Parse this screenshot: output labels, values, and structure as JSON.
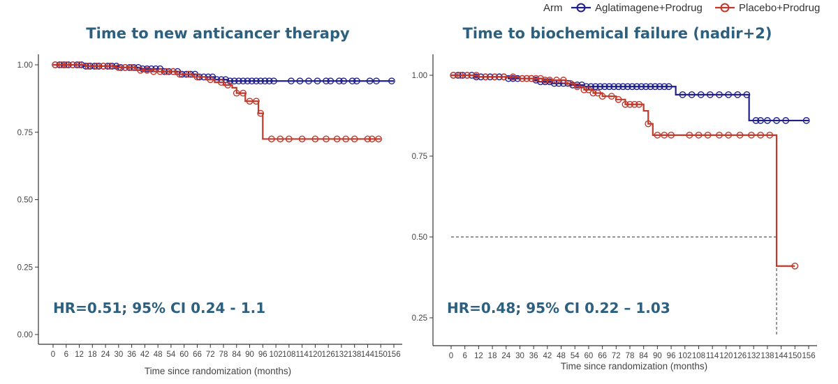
{
  "legend": {
    "title": "Arm",
    "items": [
      {
        "label": "Aglatimagene+Prodrug",
        "color": "#1f1f8c"
      },
      {
        "label": "Placebo+Prodrug",
        "color": "#c0392b"
      }
    ]
  },
  "chart_data": [
    {
      "type": "line",
      "step": true,
      "title": "Time to new anticancer therapy",
      "xlabel": "Time since randomization (months)",
      "ylabel": "",
      "xlim": [
        0,
        156
      ],
      "ylim": [
        0,
        1.0
      ],
      "x_ticks": [
        0,
        6,
        12,
        18,
        24,
        30,
        36,
        42,
        48,
        54,
        60,
        66,
        72,
        78,
        84,
        90,
        96,
        102,
        108,
        114,
        120,
        126,
        132,
        138,
        144,
        150,
        156
      ],
      "y_ticks": [
        0.0,
        0.25,
        0.5,
        0.75,
        1.0
      ],
      "y_tick_labels": [
        "0.00",
        "0.25",
        "0.50",
        "0.75",
        "1.00"
      ],
      "grid": false,
      "annotation": "HR=0.51; 95% CI 0.24 - 1.1",
      "series": [
        {
          "name": "Aglatimagene+Prodrug",
          "color": "#1f1f8c",
          "steps": [
            [
              0,
              1.0
            ],
            [
              14,
              0.995
            ],
            [
              30,
              0.99
            ],
            [
              40,
              0.985
            ],
            [
              50,
              0.975
            ],
            [
              58,
              0.965
            ],
            [
              66,
              0.955
            ],
            [
              74,
              0.945
            ],
            [
              80,
              0.94
            ]
          ],
          "end_x": 156,
          "censor_x": [
            1,
            3,
            5,
            7,
            9,
            11,
            13,
            15,
            17,
            19,
            21,
            23,
            25,
            27,
            29,
            31,
            33,
            35,
            37,
            39,
            41,
            43,
            45,
            47,
            49,
            51,
            53,
            55,
            57,
            59,
            61,
            63,
            65,
            67,
            69,
            71,
            73,
            75,
            77,
            79,
            81,
            83,
            85,
            87,
            89,
            91,
            93,
            95,
            97,
            99,
            101,
            109,
            113,
            117,
            121,
            125,
            127,
            131,
            133,
            137,
            139,
            145,
            148,
            155
          ]
        },
        {
          "name": "Placebo+Prodrug",
          "color": "#c0392b",
          "steps": [
            [
              0,
              1.0
            ],
            [
              15,
              0.995
            ],
            [
              28,
              0.99
            ],
            [
              38,
              0.98
            ],
            [
              46,
              0.975
            ],
            [
              56,
              0.965
            ],
            [
              64,
              0.955
            ],
            [
              70,
              0.945
            ],
            [
              74,
              0.935
            ],
            [
              78,
              0.925
            ],
            [
              82,
              0.915
            ],
            [
              84,
              0.895
            ],
            [
              88,
              0.865
            ],
            [
              94,
              0.82
            ],
            [
              96,
              0.725
            ]
          ],
          "end_x": 150,
          "censor_x": [
            1,
            4,
            6,
            9,
            12,
            16,
            20,
            23,
            26,
            30,
            33,
            36,
            40,
            43,
            46,
            49,
            52,
            55,
            58,
            62,
            66,
            72,
            77,
            80,
            84,
            87,
            90,
            93,
            95,
            100,
            104,
            108,
            114,
            120,
            125,
            130,
            134,
            138,
            144,
            146,
            149
          ]
        }
      ]
    },
    {
      "type": "line",
      "step": true,
      "title": "Time to biochemical failure (nadir+2)",
      "xlabel": "Time since randomization (months)",
      "ylabel": "",
      "xlim": [
        0,
        156
      ],
      "ylim": [
        0,
        1.0
      ],
      "x_ticks": [
        0,
        6,
        12,
        18,
        24,
        30,
        36,
        42,
        48,
        54,
        60,
        66,
        72,
        78,
        84,
        90,
        96,
        102,
        108,
        114,
        120,
        126,
        132,
        138,
        144,
        150,
        156
      ],
      "y_ticks": [
        0.25,
        0.5,
        0.75,
        1.0
      ],
      "y_tick_labels": [
        "0.25",
        "0.50",
        "0.75",
        "1.00"
      ],
      "grid": false,
      "annotation": "HR=0.48; 95% CI 0.22 – 1.03",
      "median_line": {
        "y": 0.5,
        "x": 142
      },
      "series": [
        {
          "name": "Aglatimagene+Prodrug",
          "color": "#1f1f8c",
          "steps": [
            [
              0,
              1.0
            ],
            [
              10,
              0.995
            ],
            [
              25,
              0.99
            ],
            [
              36,
              0.985
            ],
            [
              38,
              0.98
            ],
            [
              44,
              0.975
            ],
            [
              52,
              0.97
            ],
            [
              58,
              0.965
            ],
            [
              98,
              0.94
            ],
            [
              130,
              0.86
            ]
          ],
          "end_x": 156,
          "censor_x": [
            1,
            3,
            5,
            7,
            9,
            11,
            13,
            15,
            17,
            19,
            21,
            23,
            25,
            27,
            29,
            31,
            33,
            35,
            37,
            39,
            41,
            43,
            45,
            47,
            49,
            51,
            53,
            55,
            57,
            59,
            61,
            63,
            65,
            67,
            69,
            71,
            73,
            75,
            77,
            79,
            81,
            83,
            85,
            87,
            89,
            91,
            93,
            95,
            101,
            105,
            109,
            113,
            117,
            121,
            125,
            129,
            133,
            135,
            138,
            142,
            146,
            155
          ]
        },
        {
          "name": "Placebo+Prodrug",
          "color": "#c0392b",
          "steps": [
            [
              0,
              1.0
            ],
            [
              12,
              0.995
            ],
            [
              30,
              0.99
            ],
            [
              40,
              0.985
            ],
            [
              50,
              0.975
            ],
            [
              54,
              0.965
            ],
            [
              58,
              0.955
            ],
            [
              62,
              0.945
            ],
            [
              66,
              0.935
            ],
            [
              72,
              0.925
            ],
            [
              76,
              0.91
            ],
            [
              84,
              0.89
            ],
            [
              86,
              0.85
            ],
            [
              88,
              0.815
            ],
            [
              142,
              0.41
            ]
          ],
          "end_x": 150,
          "censor_x": [
            1,
            4,
            7,
            11,
            15,
            19,
            23,
            27,
            31,
            33,
            35,
            37,
            39,
            41,
            43,
            46,
            49,
            52,
            55,
            58,
            60,
            62,
            64,
            66,
            70,
            73,
            76,
            78,
            80,
            82,
            86,
            90,
            93,
            96,
            104,
            108,
            112,
            117,
            121,
            126,
            131,
            135,
            139,
            150
          ]
        }
      ]
    }
  ]
}
